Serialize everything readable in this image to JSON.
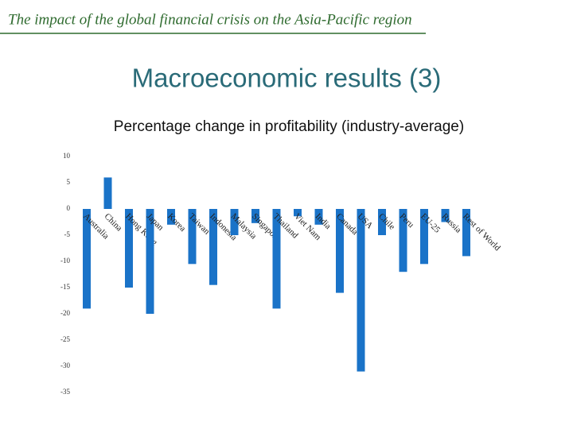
{
  "header": {
    "title": "The impact of the global financial crisis on the Asia-Pacific region"
  },
  "slide_title": "Macroeconomic results (3)",
  "chart_data": {
    "type": "bar",
    "title": "Percentage change in profitability (industry-average)",
    "categories": [
      "Australia",
      "China",
      "Hong Kong",
      "Japan",
      "Korea",
      "Taiwan",
      "Indonesia",
      "Malaysia",
      "Singapore",
      "Thailand",
      "Viet Nam",
      "India",
      "Canada",
      "USA",
      "Chile",
      "Peru",
      "EU-25",
      "Russia",
      "Rest of World"
    ],
    "values": [
      -19,
      6,
      -15,
      -20,
      -3,
      -10.5,
      -14.5,
      -5,
      -2.7,
      -19,
      -1.4,
      -3,
      -16,
      -31,
      -5,
      -12,
      -10.5,
      -2.5,
      -9
    ],
    "color": "#1a73c8",
    "ylim": [
      -35,
      10
    ],
    "yticks": [
      10,
      5,
      0,
      -5,
      -10,
      -15,
      -20,
      -25,
      -30,
      -35
    ],
    "grid": false
  }
}
